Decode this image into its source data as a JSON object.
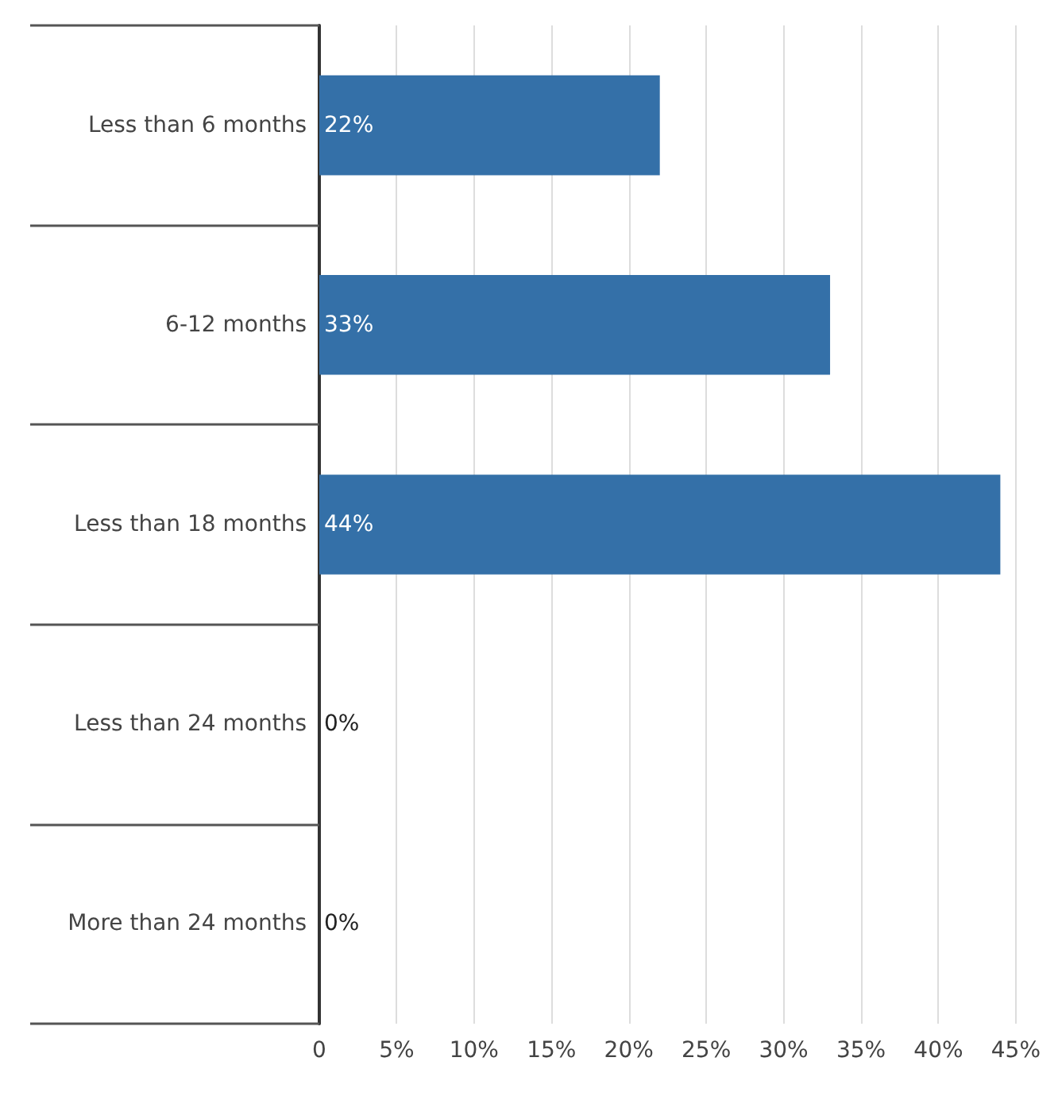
{
  "chart_data": {
    "type": "bar",
    "orientation": "horizontal",
    "categories": [
      "Less than 6 months",
      "6-12 months",
      "Less than 18 months",
      "Less than 24 months",
      "More than 24 months"
    ],
    "values": [
      22,
      33,
      44,
      0,
      0
    ],
    "value_labels": [
      "22%",
      "33%",
      "44%",
      "0%",
      "0%"
    ],
    "color": "#3470a8",
    "xlim": [
      0,
      45
    ],
    "xticks": [
      0,
      {
        "value": 5,
        "label": "5%"
      },
      {
        "value": 10,
        "label": "10%"
      },
      {
        "value": 15,
        "label": "15%"
      },
      {
        "value": 20,
        "label": "20%"
      },
      {
        "value": 25,
        "label": "25%"
      },
      {
        "value": 30,
        "label": "30%"
      },
      {
        "value": 35,
        "label": "35%"
      },
      {
        "value": 40,
        "label": "40%"
      },
      {
        "value": 45,
        "label": "45%"
      }
    ],
    "grid": "x"
  }
}
